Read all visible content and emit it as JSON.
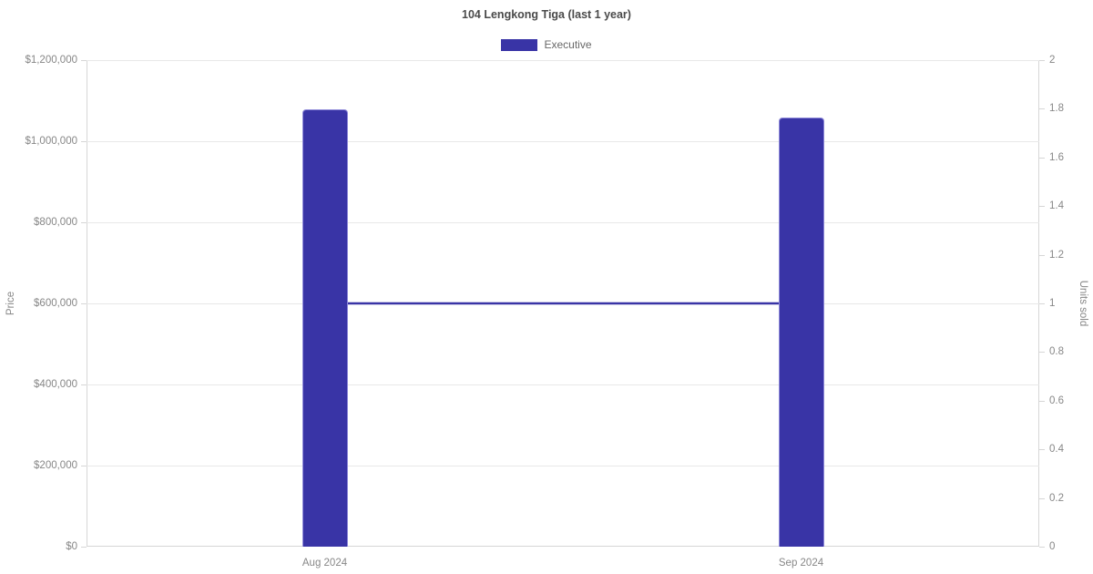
{
  "title": "104 Lengkong Tiga (last 1 year)",
  "legend": {
    "items": [
      {
        "label": "Executive",
        "color": "#3934a6"
      }
    ]
  },
  "colors": {
    "bar_fill": "#3934a6",
    "bar_border": "#8f8ad9",
    "line": "#3934a6",
    "gridline": "#e8e8e8",
    "axis_border": "#d6d6d6",
    "tick_text": "#878787",
    "title_text": "#4a4a4a",
    "legend_text": "#686868",
    "background": "#ffffff"
  },
  "chart_data": {
    "type": "bar",
    "title": "104 Lengkong Tiga (last 1 year)",
    "categories": [
      "Aug 2024",
      "Sep 2024"
    ],
    "series": [
      {
        "name": "Executive",
        "kind": "bar",
        "axis": "left",
        "values": [
          1078000,
          1058000
        ]
      },
      {
        "name": "Executive",
        "kind": "line",
        "axis": "right",
        "values": [
          1,
          1
        ]
      }
    ],
    "left_axis": {
      "label": "Price",
      "min": 0,
      "max": 1200000,
      "tick_step": 200000,
      "tick_labels_top_down": [
        "$1,200,000",
        "$1,000,000",
        "$800,000",
        "$600,000",
        "$400,000",
        "$200,000",
        "$0"
      ]
    },
    "right_axis": {
      "label": "Units sold",
      "min": 0,
      "max": 2,
      "tick_step": 0.2,
      "tick_labels_top_down": [
        "2",
        "1.8",
        "1.6",
        "1.4",
        "1.2",
        "1",
        "0.8",
        "0.6",
        "0.4",
        "0.2",
        "0"
      ]
    },
    "grid": true,
    "legend_position": "top"
  }
}
